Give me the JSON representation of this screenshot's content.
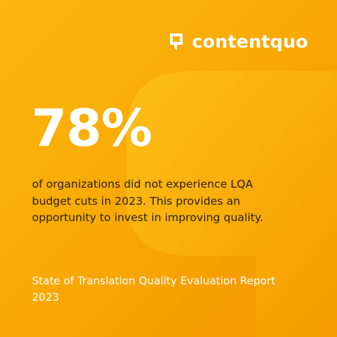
{
  "logo": {
    "text": "contentquo"
  },
  "stat": {
    "value": "78%",
    "description": [
      "of organizations did not experience LQA",
      "budget cuts in 2023. This provides an",
      "opportunity to invest in improving quality."
    ]
  },
  "footer": {
    "lines": [
      "State of Translation Quality Evaluation Report",
      "2023"
    ]
  }
}
